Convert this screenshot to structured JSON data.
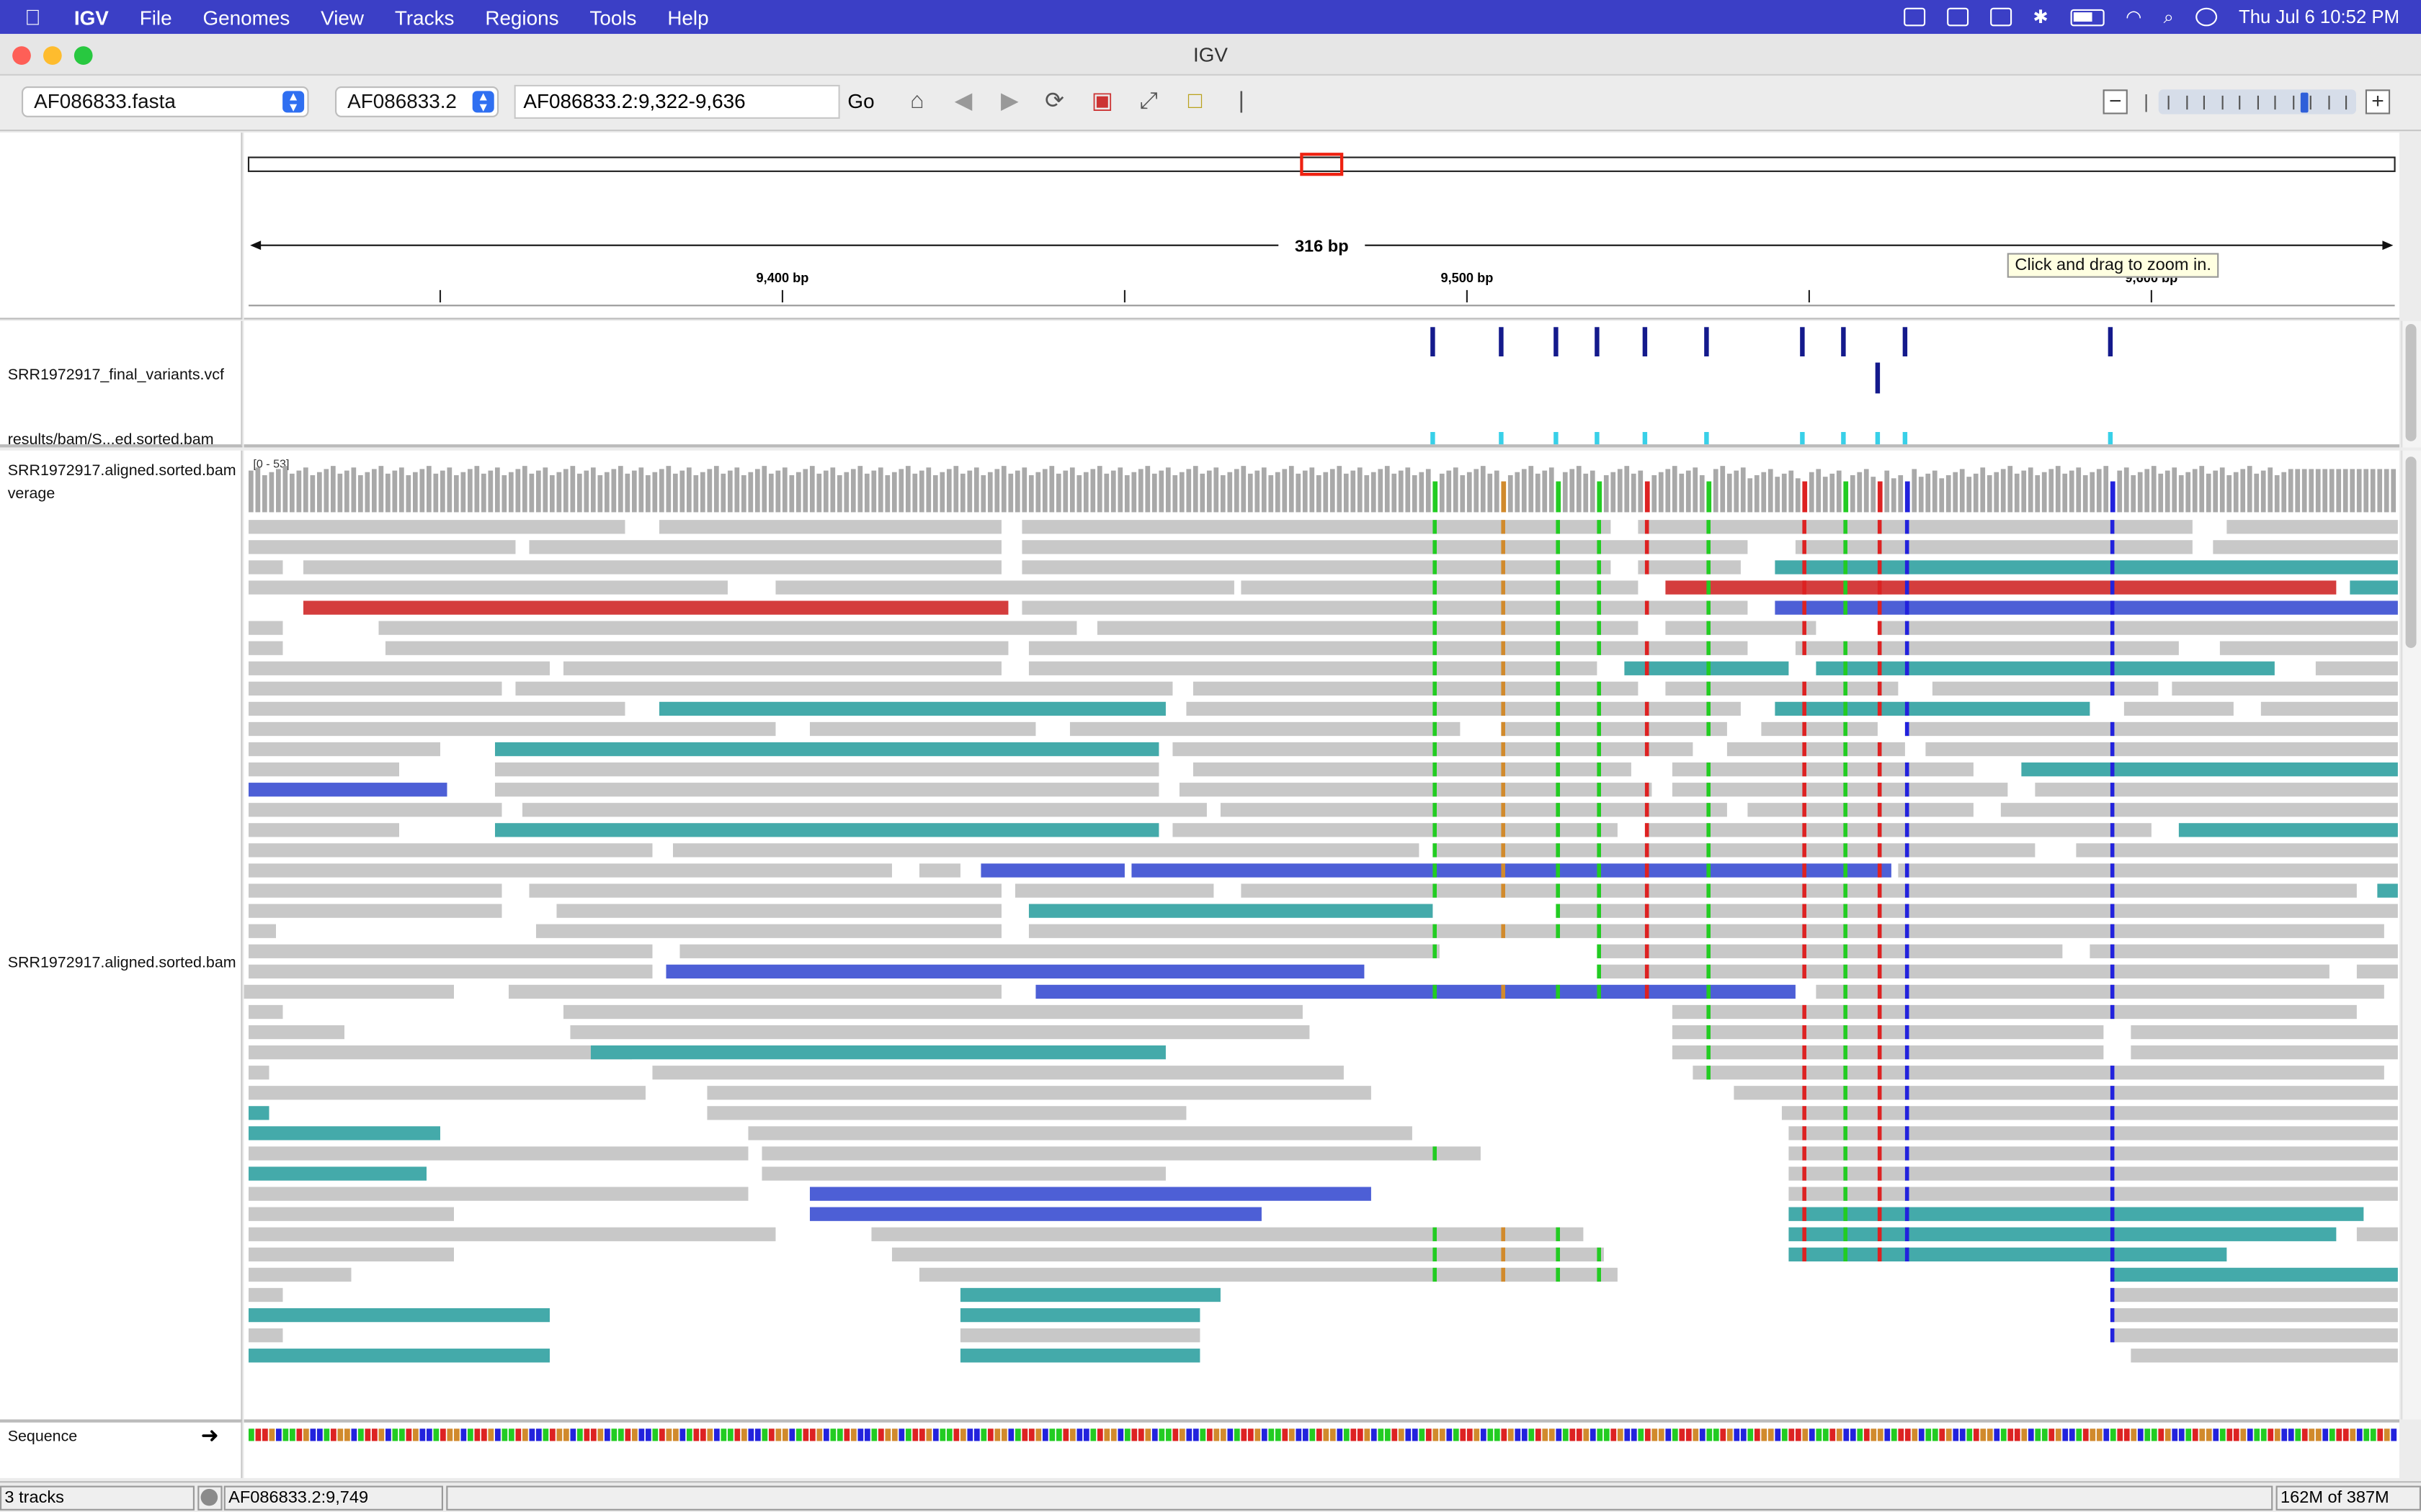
{
  "menubar": {
    "app": "IGV",
    "items": [
      "File",
      "Genomes",
      "View",
      "Tracks",
      "Regions",
      "Tools",
      "Help"
    ],
    "datetime": "Thu Jul 6  10:52 PM"
  },
  "window": {
    "title": "IGV"
  },
  "toolbar": {
    "genome": "AF086833.fasta",
    "chromosome": "AF086833.2",
    "locus": "AF086833.2:9,322-9,636",
    "go_label": "Go"
  },
  "ruler": {
    "span_label": "316 bp",
    "ticks": [
      {
        "label": "9,400 bp",
        "bp": 9400
      },
      {
        "label": "9,500 bp",
        "bp": 9500
      },
      {
        "label": "9,600 bp",
        "bp": 9600
      }
    ],
    "view_start_bp": 9322,
    "view_end_bp": 9636,
    "tooltip": "Click and drag to zoom in."
  },
  "tracks": {
    "vcf_label": "SRR1972917_final_variants.vcf",
    "bam_junction_label": "results/bam/S...ed.sorted.bam",
    "coverage_label_line1": "SRR1972917.aligned.sorted.bam",
    "coverage_label_line2": "verage",
    "coverage_range": "[0 - 53]",
    "alignment_label": "SRR1972917.aligned.sorted.bam",
    "sequence_label": "Sequence"
  },
  "variant_positions_bp": [
    9495,
    9505,
    9513,
    9519,
    9526,
    9535,
    9549,
    9555,
    9560,
    9564,
    9594
  ],
  "status": {
    "tracks": "3 tracks",
    "position": "AF086833.2:9,749",
    "memory": "162M of 387M"
  },
  "colors": {
    "menubar": "#3b3fc6",
    "read_gray": "#c8c8c8",
    "teal": "#44aaaa",
    "blue": "#4d5fd6",
    "red": "#d43d3d",
    "A": "#22cc22",
    "C": "#2222dd",
    "G": "#d18a2c",
    "T": "#dd2222"
  }
}
